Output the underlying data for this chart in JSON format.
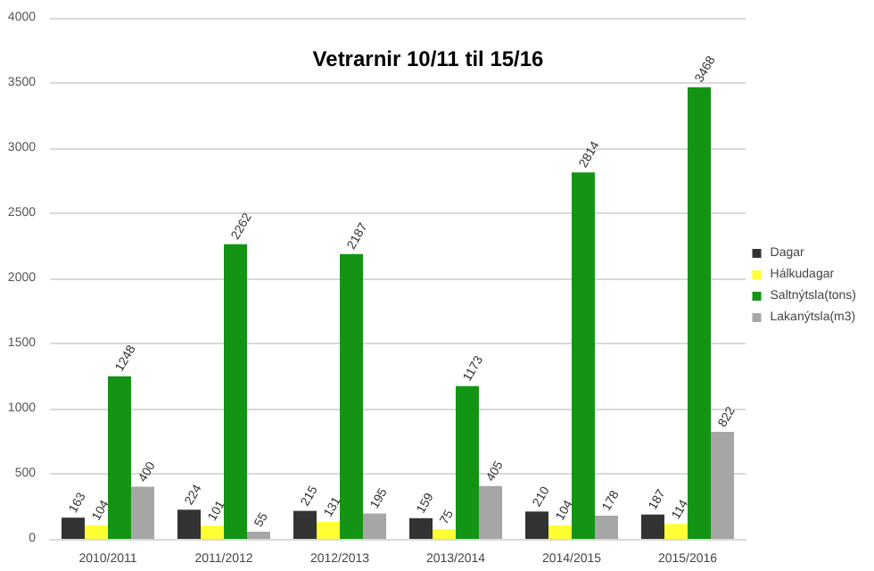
{
  "chart_data": {
    "type": "bar",
    "title": "Vetrarnir 10/11 til 15/16",
    "categories": [
      "2010/2011",
      "2011/2012",
      "2012/2013",
      "2013/2014",
      "2014/2015",
      "2015/2016"
    ],
    "series": [
      {
        "name": "Dagar",
        "color": "#333333",
        "values": [
          163,
          224,
          215,
          159,
          210,
          187
        ]
      },
      {
        "name": "Hálkudagar",
        "color": "#ffff33",
        "values": [
          104,
          101,
          131,
          75,
          104,
          114
        ]
      },
      {
        "name": "Saltnýtsla(tons)",
        "color": "#149414",
        "values": [
          1248,
          2262,
          2187,
          1173,
          2814,
          3468
        ]
      },
      {
        "name": "Lakanýtsla(m3)",
        "color": "#a6a6a6",
        "values": [
          400,
          55,
          195,
          405,
          178,
          822
        ]
      }
    ],
    "ylim": [
      0,
      4000
    ],
    "yticks": [
      0,
      500,
      1000,
      1500,
      2000,
      2500,
      3000,
      3500,
      4000
    ],
    "grid": "y",
    "legend": "right",
    "data_labels": true
  }
}
